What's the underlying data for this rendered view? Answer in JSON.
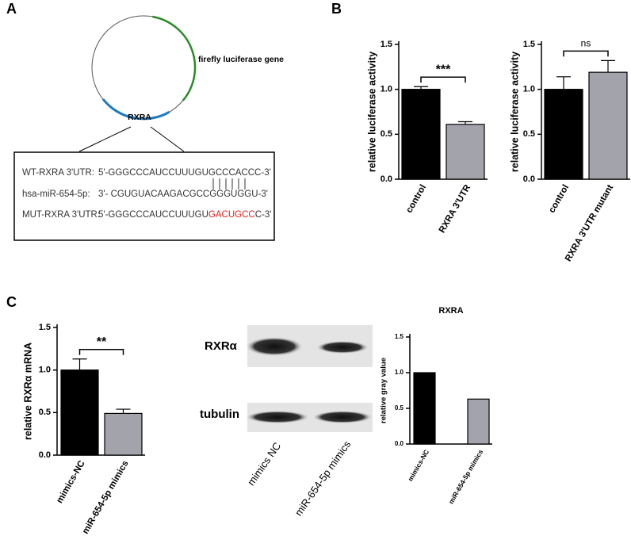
{
  "panel_labels": [
    "A",
    "B",
    "C"
  ],
  "diagram": {
    "gene_label": "firefly luciferase gene",
    "insert_label": "RXRA",
    "rows": [
      {
        "name": "WT-RXRA 3'UTR:",
        "sequence": "5'-GGGCCCAUCCUUUGUGCCCACCC-3'"
      },
      {
        "name": "hsa-miR-654-5p:",
        "sequence": "3'- CGUGUACAAGACGCCGGGUGGU-3'"
      },
      {
        "name": "MUT-RXRA 3'UTR:",
        "sequence_parts": [
          "5'-GGGCCCAUCCUUUGU",
          "GACUGCC",
          "C-3'"
        ]
      }
    ]
  },
  "blot": {
    "bands": [
      "RXRα",
      "tubulin"
    ],
    "lanes": [
      "mimics NC",
      "miR-654-5p mimics"
    ]
  },
  "chart_data": [
    {
      "type": "bar",
      "y_label": "relative luciferase activity",
      "categories": [
        "control",
        "RXRA 3'UTR"
      ],
      "values": [
        1.0,
        0.61
      ],
      "errors": [
        0.03,
        0.03
      ],
      "colors": [
        "#000000",
        "#a3a3ab"
      ],
      "annotation": "***",
      "ylim": [
        0,
        1.5
      ],
      "yticks": [
        {
          "value": 0,
          "label": "0.0"
        },
        0.5,
        {
          "value": 1,
          "label": "1.0"
        },
        1.5
      ]
    },
    {
      "type": "bar",
      "y_label": "relative luciferase activity",
      "categories": [
        "control",
        "RXRA 3'UTR mutant"
      ],
      "values": [
        1.0,
        1.19
      ],
      "errors": [
        0.14,
        0.13
      ],
      "colors": [
        "#000000",
        "#a3a3ab"
      ],
      "annotation": "ns",
      "ylim": [
        0,
        1.5
      ],
      "yticks": [
        {
          "value": 0,
          "label": "0.0"
        },
        0.5,
        {
          "value": 1,
          "label": "1.0"
        },
        1.5
      ]
    },
    {
      "type": "bar",
      "y_label": "relative RXRα mRNA",
      "categories": [
        "mimics-NC",
        "miR-654-5p mimics"
      ],
      "values": [
        1.0,
        0.49
      ],
      "errors": [
        0.13,
        0.05
      ],
      "colors": [
        "#000000",
        "#a3a3ab"
      ],
      "annotation": "**",
      "ylim": [
        0,
        1.5
      ],
      "yticks": [
        {
          "value": 0,
          "label": "0.0"
        },
        0.5,
        {
          "value": 1,
          "label": "1.0"
        },
        1.5
      ]
    },
    {
      "type": "bar",
      "title": "RXRA",
      "y_label": "relative gray value",
      "categories": [
        "mimics-NC",
        "miR-654-5p mimics"
      ],
      "values": [
        1.0,
        0.63
      ],
      "colors": [
        "#000000",
        "#a3a3ab"
      ],
      "ylim": [
        0,
        1.5
      ],
      "yticks": [
        {
          "value": 0,
          "label": "0.0"
        },
        0.5,
        {
          "value": 1,
          "label": "1.0"
        },
        1.5
      ]
    }
  ]
}
